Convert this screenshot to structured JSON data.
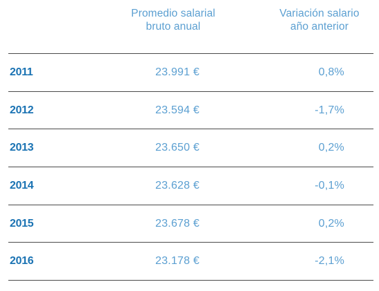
{
  "chart_data": {
    "type": "table",
    "columns": [
      "",
      "Promedio salarial bruto anual",
      "Variación salario año anterior"
    ],
    "headers": {
      "salary": [
        "Promedio salarial",
        "bruto anual"
      ],
      "variation": [
        "Variación salario",
        "año anterior"
      ]
    },
    "rows": [
      {
        "year": "2011",
        "salary": "23.991 €",
        "variation": "0,8%"
      },
      {
        "year": "2012",
        "salary": "23.594 €",
        "variation": "-1,7%"
      },
      {
        "year": "2013",
        "salary": "23.650 €",
        "variation": "0,2%"
      },
      {
        "year": "2014",
        "salary": "23.628 €",
        "variation": "-0,1%"
      },
      {
        "year": "2015",
        "salary": "23.678 €",
        "variation": "0,2%"
      },
      {
        "year": "2016",
        "salary": "23.178 €",
        "variation": "-2,1%"
      }
    ],
    "colors": {
      "year": "#1b73b3",
      "value": "#5b9fd1",
      "header": "#5b9fd1",
      "rule": "#4a4a4a"
    }
  }
}
